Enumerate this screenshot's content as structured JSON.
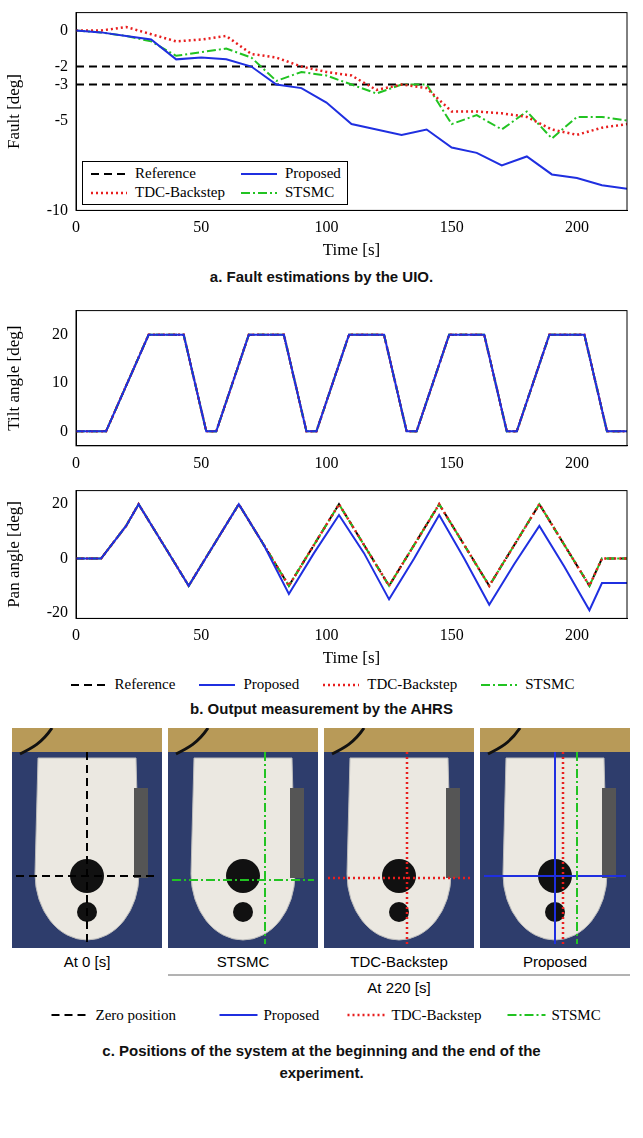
{
  "chart_data": [
    {
      "type": "line",
      "caption": "a. Fault estimations by the UIO.",
      "x_label": "Time [s]",
      "y_label": "Fault [deg]",
      "xlim": [
        0,
        220
      ],
      "xticks": [
        0,
        50,
        100,
        150,
        200
      ],
      "ylim": [
        -10,
        1
      ],
      "yticks": [
        -10,
        -5,
        -3,
        -2,
        0
      ],
      "grid": false,
      "legend": "lower left",
      "series": [
        {
          "name": "Reference",
          "color": "#000000",
          "line_style": "dashed",
          "x": [
            0,
            220,
            0,
            0,
            220
          ],
          "values": [
            -2,
            -2,
            null,
            -3,
            -3
          ]
        },
        {
          "name": "Proposed",
          "color": "#1f2fe0",
          "line_style": "solid",
          "x": [
            0,
            10,
            20,
            30,
            40,
            50,
            60,
            70,
            80,
            90,
            100,
            110,
            120,
            130,
            140,
            150,
            160,
            170,
            180,
            190,
            200,
            210,
            220
          ],
          "values": [
            0,
            -0.1,
            -0.3,
            -0.5,
            -1.6,
            -1.5,
            -1.6,
            -2,
            -3,
            -3.2,
            -4,
            -5.2,
            -5.5,
            -5.8,
            -5.5,
            -6.5,
            -6.8,
            -7.5,
            -7,
            -8,
            -8.2,
            -8.6,
            -8.8
          ]
        },
        {
          "name": "TDC-Backstep",
          "color": "#e81e1e",
          "line_style": "dotted",
          "x": [
            0,
            10,
            20,
            30,
            40,
            50,
            60,
            70,
            80,
            90,
            100,
            110,
            120,
            130,
            140,
            150,
            160,
            170,
            180,
            190,
            200,
            210,
            220
          ],
          "values": [
            0,
            0,
            0.2,
            -0.2,
            -0.6,
            -0.5,
            -0.3,
            -1.3,
            -1.5,
            -2,
            -2.3,
            -2.5,
            -3.3,
            -3,
            -3.2,
            -4.5,
            -4.5,
            -4.6,
            -4.8,
            -5.5,
            -5.8,
            -5.4,
            -5.2
          ]
        },
        {
          "name": "STSMC",
          "color": "#22c322",
          "line_style": "dashdot",
          "x": [
            0,
            10,
            20,
            30,
            40,
            50,
            60,
            70,
            80,
            90,
            100,
            110,
            120,
            130,
            140,
            150,
            160,
            170,
            180,
            190,
            200,
            210,
            220
          ],
          "values": [
            0,
            -0.1,
            -0.3,
            -0.6,
            -1.4,
            -1.2,
            -1,
            -1.5,
            -2.8,
            -2.3,
            -2.5,
            -3,
            -3.5,
            -3,
            -3,
            -5.2,
            -4.7,
            -5.5,
            -4.5,
            -6,
            -4.8,
            -4.8,
            -5
          ]
        }
      ]
    },
    {
      "type": "line",
      "y_label": "Tilt angle [deg]",
      "xlim": [
        0,
        220
      ],
      "xticks": [
        0,
        50,
        100,
        150,
        200
      ],
      "ylim": [
        -3,
        25
      ],
      "yticks": [
        0,
        10,
        20
      ],
      "grid": false,
      "series": [
        {
          "name": "Reference",
          "color": "#000000",
          "line_style": "dashed",
          "x": [
            0,
            12,
            29,
            43,
            52,
            56,
            69,
            83,
            92,
            96,
            109,
            123,
            132,
            136,
            149,
            163,
            172,
            176,
            189,
            203,
            212,
            220
          ],
          "values": [
            0,
            0,
            20,
            20,
            0,
            0,
            20,
            20,
            0,
            0,
            20,
            20,
            0,
            0,
            20,
            20,
            0,
            0,
            20,
            20,
            0,
            0
          ]
        },
        {
          "name": "Proposed",
          "color": "#1f2fe0",
          "line_style": "solid",
          "x": [
            0,
            12,
            29,
            43,
            52,
            56,
            69,
            83,
            92,
            96,
            109,
            123,
            132,
            136,
            149,
            163,
            172,
            176,
            189,
            203,
            212,
            220
          ],
          "values": [
            0,
            0,
            20,
            20,
            0,
            0,
            20,
            20,
            0,
            0,
            20,
            20,
            0,
            0,
            20,
            20,
            0,
            0,
            20,
            20,
            0,
            0
          ]
        },
        {
          "name": "TDC-Backstep",
          "color": "#e81e1e",
          "line_style": "dotted",
          "x": [
            0,
            12,
            29,
            43,
            52,
            56,
            69,
            83,
            92,
            96,
            109,
            123,
            132,
            136,
            149,
            163,
            172,
            176,
            189,
            203,
            212,
            220
          ],
          "values": [
            0,
            0,
            20,
            20,
            0,
            0,
            20,
            20,
            0,
            0,
            20,
            20,
            0,
            0,
            20,
            20,
            0,
            0,
            20,
            20,
            0,
            0
          ]
        },
        {
          "name": "STSMC",
          "color": "#22c322",
          "line_style": "dashdot",
          "x": [
            0,
            12,
            29,
            43,
            52,
            56,
            69,
            83,
            92,
            96,
            109,
            123,
            132,
            136,
            149,
            163,
            172,
            176,
            189,
            203,
            212,
            220
          ],
          "values": [
            0,
            0,
            20,
            20,
            0,
            0,
            20,
            20,
            0,
            0,
            20,
            20,
            0,
            0,
            20,
            20,
            0,
            0,
            20,
            20,
            0,
            0
          ]
        }
      ]
    },
    {
      "type": "line",
      "caption": "b. Output measurement by the AHRS",
      "x_label": "Time [s]",
      "y_label": "Pan angle [deg]",
      "xlim": [
        0,
        220
      ],
      "xticks": [
        0,
        50,
        100,
        150,
        200
      ],
      "ylim": [
        -22,
        25
      ],
      "yticks": [
        -20,
        0,
        20
      ],
      "grid": false,
      "legend": "bottom",
      "series": [
        {
          "name": "Reference",
          "color": "#000000",
          "line_style": "dashed",
          "x": [
            0,
            10,
            20,
            25,
            35,
            45,
            55,
            65,
            75,
            85,
            95,
            105,
            115,
            125,
            135,
            145,
            155,
            165,
            175,
            185,
            195,
            205,
            210,
            220
          ],
          "values": [
            0,
            0,
            12,
            20,
            5,
            -10,
            5,
            20,
            5,
            -10,
            5,
            20,
            5,
            -10,
            5,
            20,
            5,
            -10,
            5,
            20,
            5,
            -10,
            0,
            0
          ]
        },
        {
          "name": "Proposed",
          "color": "#1f2fe0",
          "line_style": "solid",
          "x": [
            0,
            10,
            20,
            25,
            35,
            45,
            55,
            65,
            75,
            85,
            95,
            105,
            115,
            125,
            135,
            145,
            155,
            165,
            175,
            185,
            195,
            205,
            210,
            220
          ],
          "values": [
            0,
            0,
            12,
            20,
            5,
            -10,
            5,
            20,
            5,
            -13,
            2,
            16,
            2,
            -15,
            0,
            16,
            0,
            -17,
            -2,
            12,
            -3,
            -19,
            -9,
            -9
          ]
        },
        {
          "name": "TDC-Backstep",
          "color": "#e81e1e",
          "line_style": "dotted",
          "x": [
            0,
            10,
            20,
            25,
            35,
            45,
            55,
            65,
            75,
            85,
            95,
            105,
            115,
            125,
            135,
            145,
            155,
            165,
            175,
            185,
            195,
            205,
            210,
            220
          ],
          "values": [
            0,
            0,
            12,
            20,
            5,
            -10,
            5,
            20,
            5,
            -10,
            5,
            20,
            5,
            -10,
            5,
            20,
            5,
            -10,
            5,
            20,
            5,
            -10,
            0,
            0
          ]
        },
        {
          "name": "STSMC",
          "color": "#22c322",
          "line_style": "dashdot",
          "x": [
            0,
            10,
            20,
            25,
            35,
            45,
            55,
            65,
            75,
            85,
            95,
            105,
            115,
            125,
            135,
            145,
            155,
            165,
            175,
            185,
            195,
            205,
            210,
            220
          ],
          "values": [
            0,
            0,
            12,
            20,
            5,
            -10,
            5,
            20,
            5,
            -10,
            5,
            20,
            5,
            -10,
            5,
            20,
            5,
            -10,
            5,
            20,
            5,
            -10,
            0,
            0
          ]
        }
      ]
    }
  ],
  "figure_c": {
    "images": [
      {
        "label": "At 0 [s]",
        "marks": [
          "Zero position"
        ]
      },
      {
        "label": "STSMC",
        "marks": [
          "STSMC"
        ]
      },
      {
        "label": "TDC-Backstep",
        "marks": [
          "TDC-Backstep"
        ]
      },
      {
        "label": "Proposed",
        "marks": [
          "Proposed",
          "TDC-Backstep",
          "STSMC"
        ]
      }
    ],
    "group_label": "At 220 [s]",
    "legend_entries": [
      {
        "name": "Zero position",
        "color": "#000000",
        "line_style": "dashed"
      },
      {
        "name": "Proposed",
        "color": "#1f2fe0",
        "line_style": "solid"
      },
      {
        "name": "TDC-Backstep",
        "color": "#e81e1e",
        "line_style": "dotted"
      },
      {
        "name": "STSMC",
        "color": "#22c322",
        "line_style": "dashdot"
      }
    ],
    "caption": "c. Positions of the system at the beginning and the end of the experiment."
  }
}
